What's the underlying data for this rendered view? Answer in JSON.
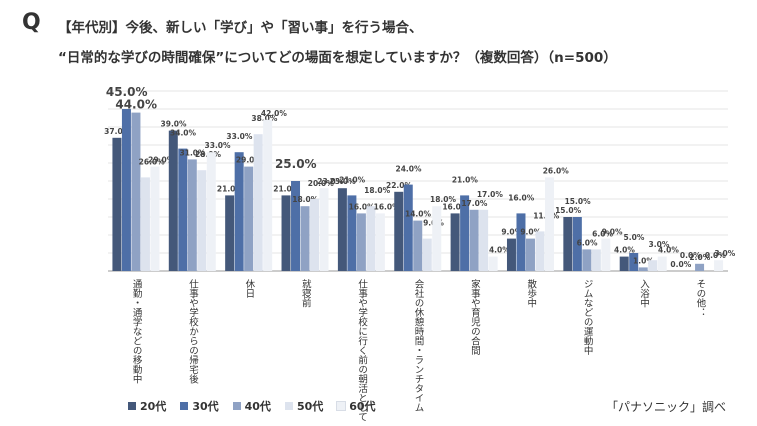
{
  "header": {
    "q_mark": "Q",
    "line1": "【年代別】今後、新しい「学び」や「習い事」を行う場合、",
    "line2": "“日常的な学びの時間確保”についてどの場面を想定していますか？（複数回答）（n=500）"
  },
  "source": "「パナソニック」調べ",
  "colors": {
    "20代": "#44587a",
    "30代": "#4e6fa7",
    "40代": "#8fa2c4",
    "50代": "#dde3ee",
    "60代": "#eef1f6"
  },
  "chart_data": {
    "type": "bar",
    "title": "【年代別】今後、新しい「学び」や「習い事」を行う場合、“日常的な学びの時間確保”についてどの場面を想定していますか？（複数回答）（n=500）",
    "categories": [
      "通勤・通学などの移動中",
      "仕事や学校からの帰宅後",
      "休日",
      "就寝前",
      "仕事や学校に行く前の朝活として",
      "会社の休憩時間・ランチタイム",
      "家事や育児の合間",
      "散歩中",
      "ジムなどの運動中",
      "入浴中",
      "その他："
    ],
    "series": [
      {
        "name": "20代",
        "values": [
          37.0,
          39.0,
          21.0,
          21.0,
          23.0,
          22.0,
          16.0,
          9.0,
          15.0,
          4.0,
          0.0
        ]
      },
      {
        "name": "30代",
        "values": [
          45.0,
          34.0,
          33.0,
          25.0,
          21.0,
          24.0,
          21.0,
          16.0,
          15.0,
          5.0,
          0.0
        ]
      },
      {
        "name": "40代",
        "values": [
          44.0,
          31.0,
          29.0,
          18.0,
          16.0,
          14.0,
          17.0,
          9.0,
          6.0,
          1.0,
          2.0
        ]
      },
      {
        "name": "50代",
        "values": [
          26.0,
          28.0,
          38.0,
          20.0,
          18.0,
          9.0,
          17.0,
          11.0,
          6.0,
          3.0,
          0.0
        ]
      },
      {
        "name": "60代",
        "values": [
          29.0,
          33.0,
          42.0,
          23.0,
          16.0,
          18.0,
          4.0,
          26.0,
          9.0,
          4.0,
          3.0
        ]
      }
    ],
    "value_labels": [
      [
        "37.0%",
        "39.0%",
        "21.0%",
        "21.0%",
        "23.0%",
        "22.0%",
        "16.0%",
        "9.0%",
        "15.0%",
        "4.0%",
        "0.0%"
      ],
      [
        "45.0%",
        "34.0%",
        "33.0%",
        "25.0%",
        "21.0%",
        "24.0%",
        "21.0%",
        "16.0%",
        "15.0%",
        "5.0%",
        "0.0%"
      ],
      [
        "44.0%",
        "31.0%",
        "29.0%",
        "18.0%",
        "16.0%",
        "14.0%",
        "17.0%",
        "9.0%",
        "6.0%",
        "1.0%",
        "2.0%"
      ],
      [
        "26.0%",
        "28.0%",
        "38.0%",
        "20.0%",
        "18.0%",
        "9.0%",
        "17.0%",
        "11.0%",
        "6.0%",
        "3.0%",
        "0.0%"
      ],
      [
        "29.0%",
        "33.0%",
        "42.0%",
        "23.0%",
        "16.0%",
        "18.0%",
        "4.0%",
        "26.0%",
        "9.0%",
        "4.0%",
        "3.0%"
      ]
    ],
    "ylim": [
      0,
      50
    ],
    "grid": true,
    "legend": "bottom-left"
  }
}
